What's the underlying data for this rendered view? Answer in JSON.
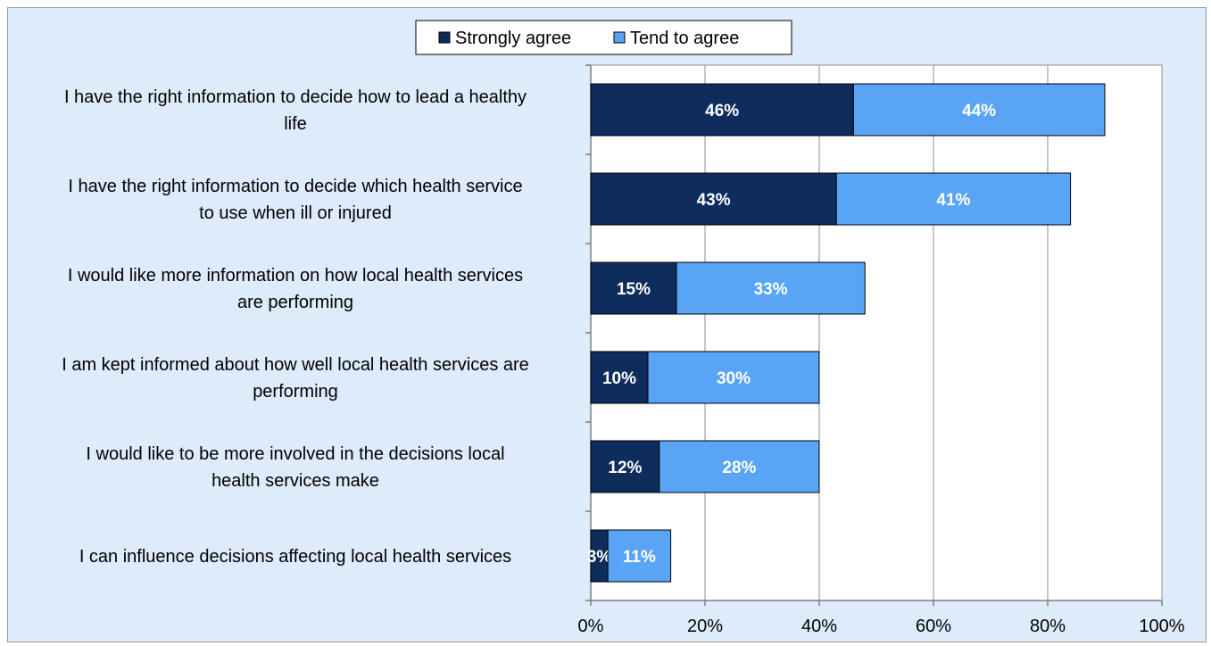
{
  "chart_data": {
    "type": "bar",
    "orientation": "horizontal",
    "stacked": true,
    "categories": [
      [
        "I have the right information to decide how to lead a healthy",
        "life"
      ],
      [
        "I have the right information to decide which health service",
        "to use when ill or injured"
      ],
      [
        "I would like more information on how local health services",
        "are performing"
      ],
      [
        "I am kept informed about how well local health services are",
        "performing"
      ],
      [
        "I would like to be more involved in the decisions local",
        "health services make"
      ],
      [
        "I can influence decisions affecting local health services"
      ]
    ],
    "series": [
      {
        "name": "Strongly agree",
        "color": "#0f2d5c",
        "values": [
          46,
          43,
          15,
          10,
          12,
          3
        ],
        "labels": [
          "46%",
          "43%",
          "15%",
          "10%",
          "12%",
          "3%"
        ]
      },
      {
        "name": "Tend to agree",
        "color": "#5aa4f5",
        "values": [
          44,
          41,
          33,
          30,
          28,
          11
        ],
        "labels": [
          "44%",
          "41%",
          "33%",
          "30%",
          "28%",
          "11%"
        ]
      }
    ],
    "xlim": [
      0,
      100
    ],
    "xticks": [
      0,
      20,
      40,
      60,
      80,
      100
    ],
    "xtick_labels": [
      "0%",
      "20%",
      "40%",
      "60%",
      "80%",
      "100%"
    ],
    "grid": "vertical",
    "legend": "top-center",
    "background": "#deebfb",
    "plot_background": "#ffffff"
  }
}
